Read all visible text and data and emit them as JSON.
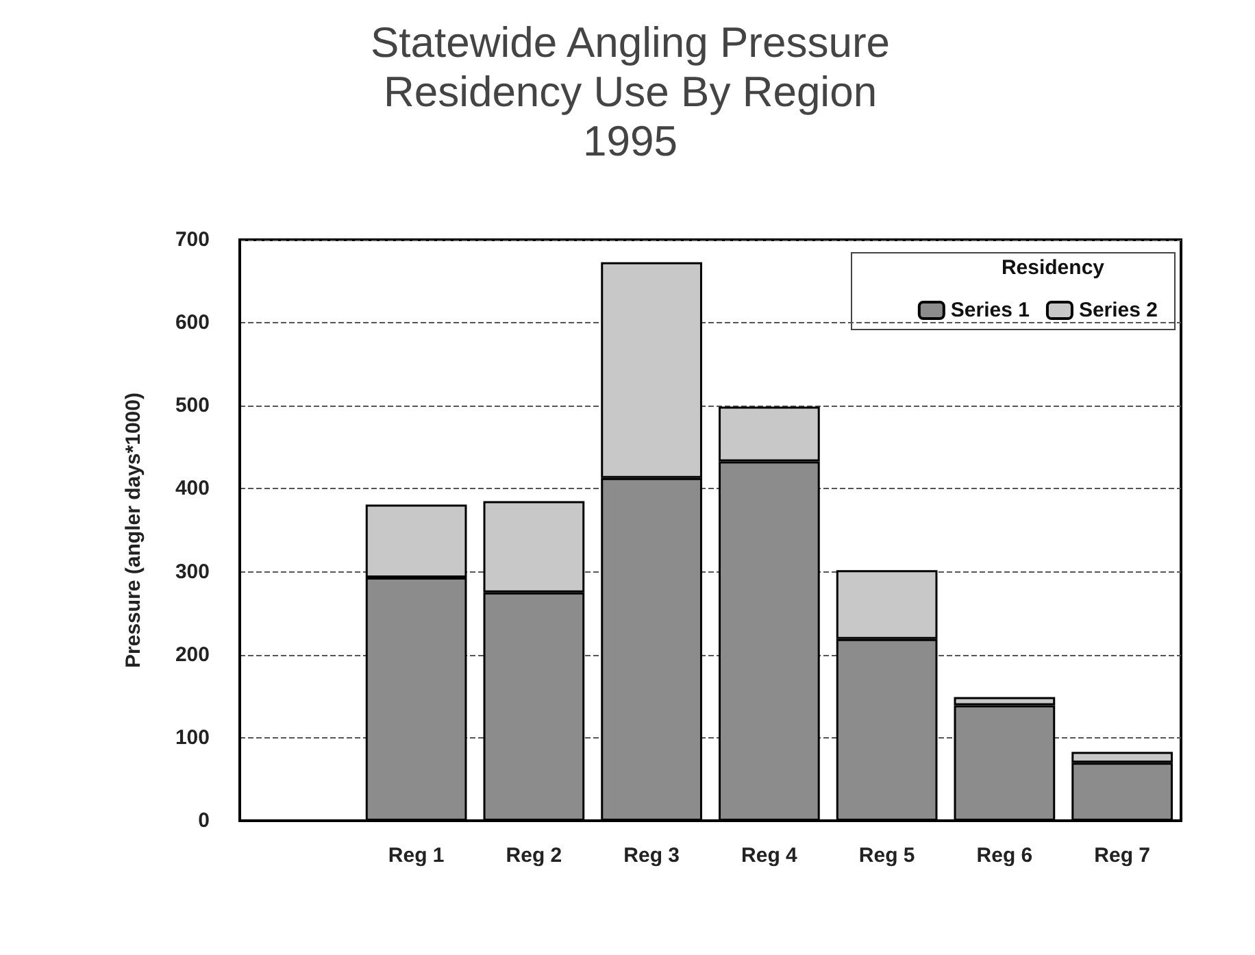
{
  "chart_data": {
    "type": "bar",
    "title": "Statewide Angling Pressure\nResidency Use By Region\n1995",
    "ylabel": "Pressure (angler days*1000)",
    "legend_title": "Residency",
    "categories": [
      null,
      "Reg 1",
      "Reg 2",
      "Reg 3",
      "Reg 4",
      "Reg 5",
      "Reg 6",
      "Reg 7"
    ],
    "series": [
      {
        "name": "Series 1",
        "color": "#8c8c8c",
        "values": [
          null,
          293,
          275,
          413,
          433,
          219,
          139,
          70
        ]
      },
      {
        "name": "Series 2",
        "color": "#c8c8c8",
        "values": [
          null,
          88,
          110,
          260,
          66,
          83,
          10,
          13
        ]
      }
    ],
    "stacked": true,
    "ylim": [
      0,
      700
    ],
    "yticks": [
      0,
      100,
      200,
      300,
      400,
      500,
      600,
      700
    ],
    "grid": "y",
    "legend": "top right"
  }
}
